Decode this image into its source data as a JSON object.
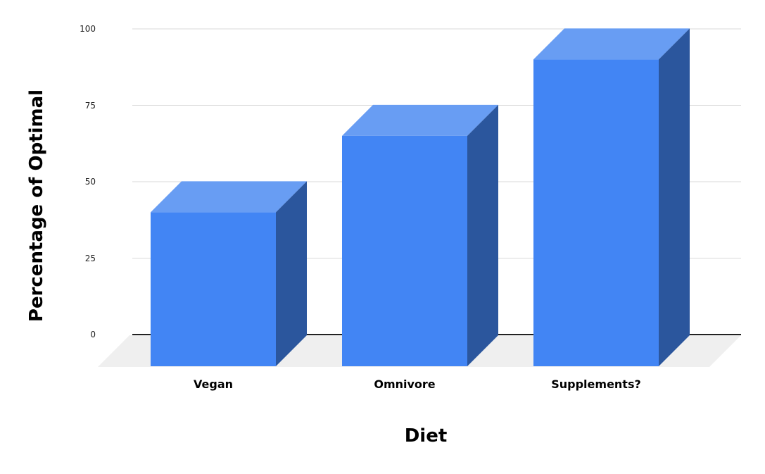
{
  "chart_data": {
    "type": "bar",
    "projection": "3d",
    "title": "",
    "xlabel": "Diet",
    "ylabel": "Percentage of Optimal",
    "categories": [
      "Vegan",
      "Omnivore",
      "Supplements?"
    ],
    "values": [
      40,
      65,
      90
    ],
    "ylim": [
      0,
      100
    ],
    "yticks": [
      0,
      25,
      50,
      75,
      100
    ],
    "grid": true,
    "legend_position": "none",
    "colors": {
      "bar_front": "#4285f4",
      "bar_top": "#689df3",
      "bar_side": "#2b569d",
      "floor": "#efefef",
      "gridline": "#d9d9d9",
      "baseline": "#212121",
      "text": "#000000",
      "background": "#ffffff"
    }
  }
}
